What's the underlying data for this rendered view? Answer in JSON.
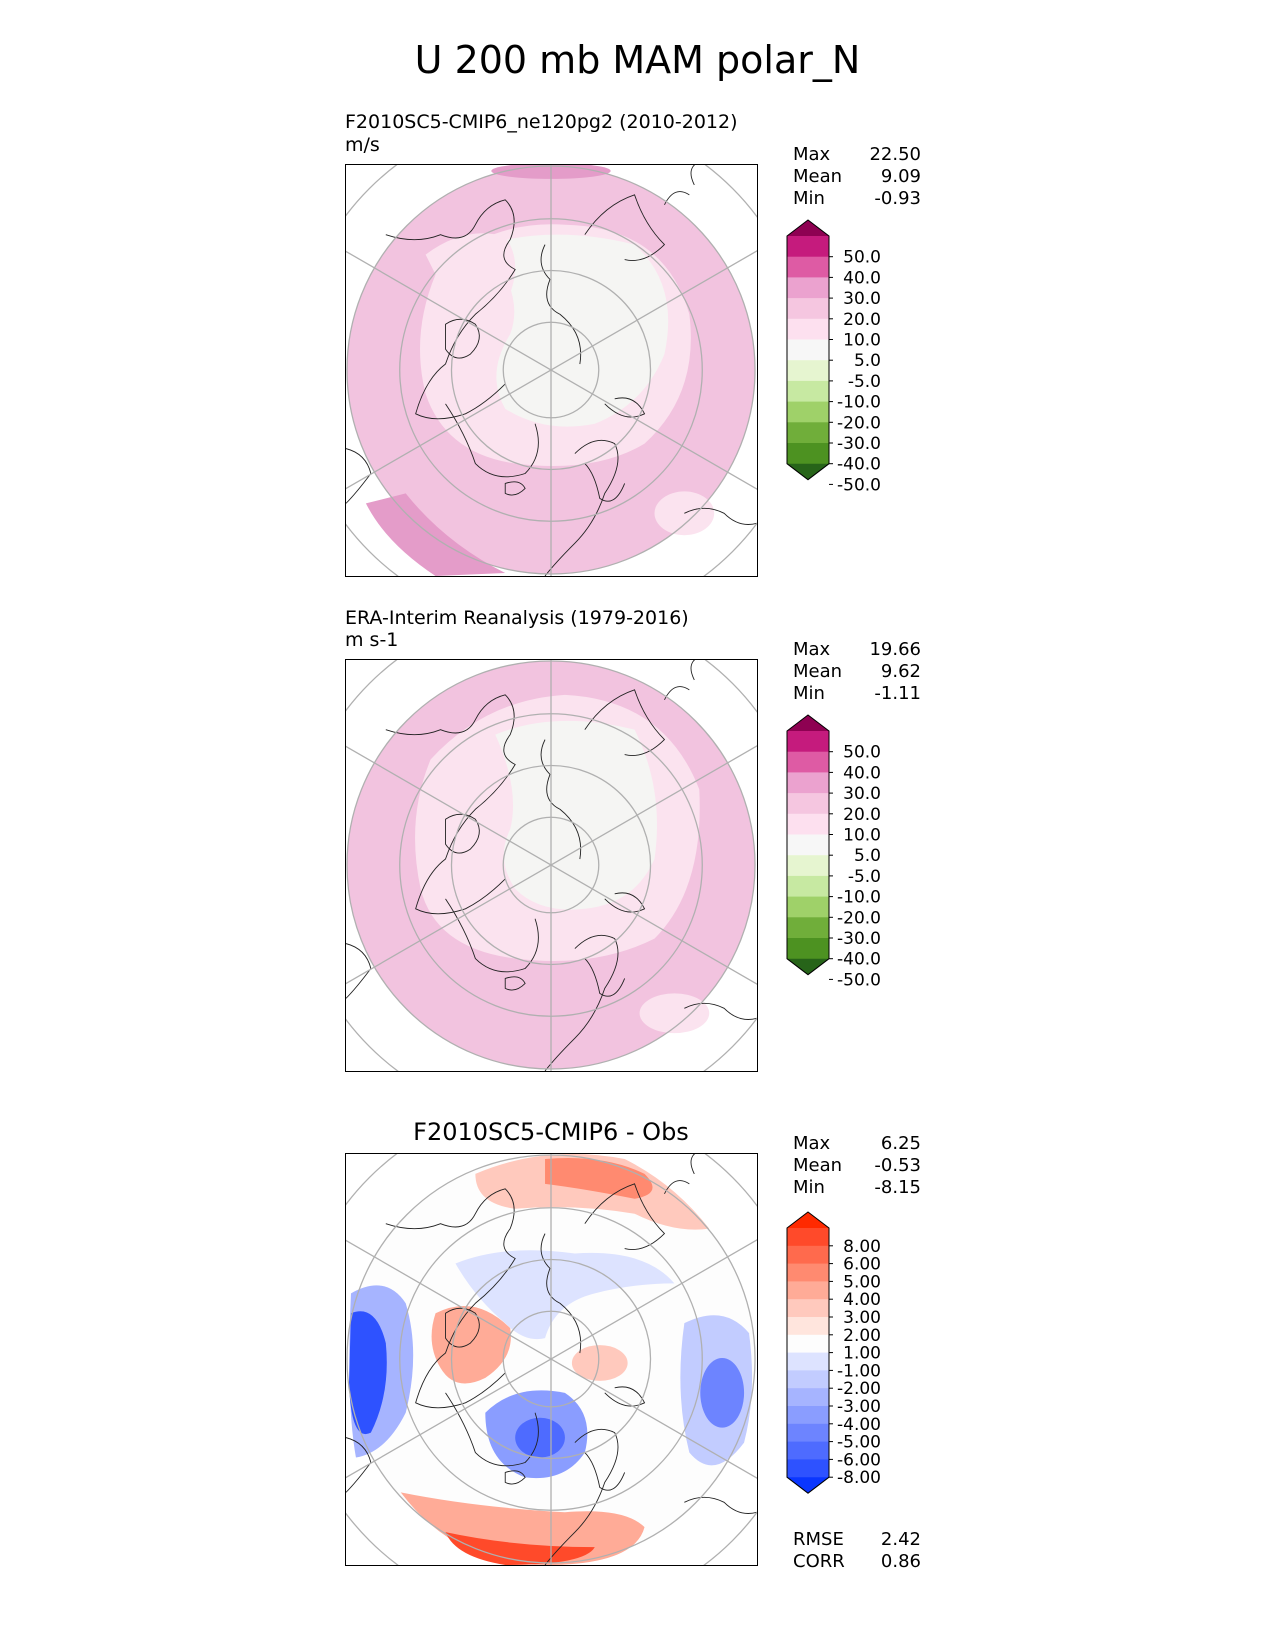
{
  "figure": {
    "title": "U 200 mb MAM polar_N"
  },
  "colors": {
    "land_outline": "#222222",
    "grid": "#b0b0b0",
    "pink_fill": "#f2c3df",
    "light_pink_fill": "#fbe3ef",
    "near_zero_fill": "#f5f5f3",
    "deep_pink_fill": "#e49cc9"
  },
  "panels": {
    "test": {
      "title": "F2010SC5-CMIP6_ne120pg2 (2010-2012)",
      "units": "m/s",
      "stats": {
        "max_label": "Max",
        "max": "22.50",
        "mean_label": "Mean",
        "mean": "9.09",
        "min_label": "Min",
        "min": "-0.93"
      }
    },
    "ref": {
      "title": "ERA-Interim Reanalysis (1979-2016)",
      "units": "m s-1",
      "stats": {
        "max_label": "Max",
        "max": "19.66",
        "mean_label": "Mean",
        "mean": "9.62",
        "min_label": "Min",
        "min": "-1.11"
      }
    },
    "diff": {
      "title": "F2010SC5-CMIP6 - Obs",
      "stats": {
        "max_label": "Max",
        "max": "6.25",
        "mean_label": "Mean",
        "mean": "-0.53",
        "min_label": "Min",
        "min": "-8.15"
      },
      "metrics": {
        "rmse_label": "RMSE",
        "rmse": "2.42",
        "corr_label": "CORR",
        "corr": "0.86"
      }
    }
  },
  "chart_data": [
    {
      "type": "heatmap",
      "name": "test",
      "title": "F2010SC5-CMIP6_ne120pg2 (2010-2012)",
      "units": "m/s",
      "projection": "north polar stereographic",
      "colorbar": {
        "levels": [
          "50.0",
          "40.0",
          "30.0",
          "20.0",
          "10.0",
          "5.0",
          "-5.0",
          "-10.0",
          "-20.0",
          "-30.0",
          "-40.0",
          "-50.0"
        ],
        "colors": [
          "#8e0152",
          "#c51b7d",
          "#de5ba4",
          "#eba2cf",
          "#f5c6e0",
          "#fde0ef",
          "#f7f7f7",
          "#e6f5d0",
          "#c7e9a2",
          "#9fd169",
          "#70ae3a",
          "#4d9221",
          "#276419"
        ]
      }
    },
    {
      "type": "heatmap",
      "name": "ref",
      "title": "ERA-Interim Reanalysis (1979-2016)",
      "units": "m s-1",
      "projection": "north polar stereographic",
      "colorbar": {
        "levels": [
          "50.0",
          "40.0",
          "30.0",
          "20.0",
          "10.0",
          "5.0",
          "-5.0",
          "-10.0",
          "-20.0",
          "-30.0",
          "-40.0",
          "-50.0"
        ],
        "colors": [
          "#8e0152",
          "#c51b7d",
          "#de5ba4",
          "#eba2cf",
          "#f5c6e0",
          "#fde0ef",
          "#f7f7f7",
          "#e6f5d0",
          "#c7e9a2",
          "#9fd169",
          "#70ae3a",
          "#4d9221",
          "#276419"
        ]
      }
    },
    {
      "type": "heatmap",
      "name": "diff",
      "title": "F2010SC5-CMIP6 - Obs",
      "projection": "north polar stereographic",
      "colorbar": {
        "levels": [
          "8.00",
          "6.00",
          "5.00",
          "4.00",
          "3.00",
          "2.00",
          "1.00",
          "-1.00",
          "-2.00",
          "-3.00",
          "-4.00",
          "-5.00",
          "-6.00",
          "-8.00"
        ],
        "colors": [
          "#ff2a00",
          "#ff4a2a",
          "#ff6a4d",
          "#ff8a70",
          "#ffab97",
          "#ffc9bd",
          "#ffe5dd",
          "#fdfdfd",
          "#dde3ff",
          "#c2ccff",
          "#a6b4ff",
          "#8a9dff",
          "#6d84ff",
          "#4e6bff",
          "#2e52ff",
          "#0a36ff"
        ]
      }
    }
  ]
}
